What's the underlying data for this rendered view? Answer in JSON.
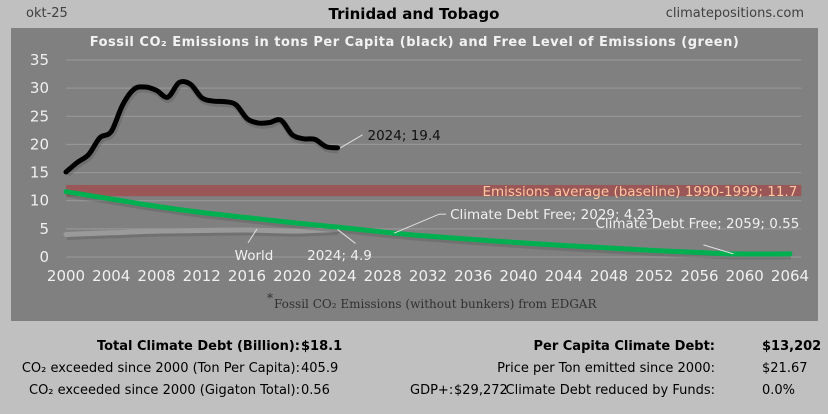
{
  "header": {
    "date": "okt-25",
    "title": "Trinidad and Tobago",
    "site": "climatepositions.com"
  },
  "chart_data": {
    "type": "line",
    "title": "Fossil CO₂ Emissions in tons Per Capita (black) and Free Level of Emissions (green)",
    "xlabel": "",
    "ylabel": "",
    "xlim": [
      2000,
      2065
    ],
    "ylim": [
      0,
      35
    ],
    "x_ticks": [
      "2000",
      "2004",
      "2008",
      "2012",
      "2016",
      "2020",
      "2024",
      "2028",
      "2032",
      "2036",
      "2040",
      "2044",
      "2048",
      "2052",
      "2056",
      "2060",
      "2064"
    ],
    "y_ticks": [
      "0",
      "5",
      "10",
      "15",
      "20",
      "25",
      "30",
      "35"
    ],
    "grid": true,
    "series": [
      {
        "name": "Trinidad and Tobago fossil CO2 per capita",
        "color": "#000000",
        "x": [
          2000,
          2001,
          2002,
          2003,
          2004,
          2005,
          2006,
          2007,
          2008,
          2009,
          2010,
          2011,
          2012,
          2013,
          2014,
          2015,
          2016,
          2017,
          2018,
          2019,
          2020,
          2021,
          2022,
          2023,
          2024
        ],
        "values": [
          15.1,
          16.8,
          18.2,
          21.2,
          22.3,
          27.0,
          29.8,
          30.2,
          29.6,
          28.4,
          31.0,
          30.7,
          28.3,
          27.7,
          27.6,
          27.1,
          24.6,
          23.8,
          23.9,
          24.3,
          21.7,
          21.0,
          20.9,
          19.6,
          19.4
        ]
      },
      {
        "name": "World",
        "color": "#9a9a9a",
        "x": [
          2000,
          2004,
          2008,
          2012,
          2016,
          2020,
          2024
        ],
        "values": [
          4.0,
          4.3,
          4.6,
          4.7,
          4.8,
          4.6,
          4.9
        ]
      },
      {
        "name": "Free level of emissions",
        "color": "#00b050",
        "x": [
          2000,
          2004,
          2008,
          2012,
          2016,
          2020,
          2024,
          2029,
          2032,
          2036,
          2040,
          2044,
          2048,
          2052,
          2056,
          2059,
          2064
        ],
        "values": [
          11.6,
          10.3,
          9.0,
          7.9,
          7.0,
          6.1,
          5.3,
          4.23,
          3.7,
          3.1,
          2.55,
          2.05,
          1.6,
          1.15,
          0.8,
          0.55,
          0.55
        ]
      }
    ],
    "baseline_band": {
      "label": "Emissions average (baseline) 1990-1999; 11.7",
      "value": 11.7,
      "range": [
        10.8,
        12.8
      ],
      "color": "#a05050"
    },
    "annotations": [
      {
        "text": "2024; 19.4",
        "x": 2024,
        "y": 19.4
      },
      {
        "text": "2024; 4.9",
        "x": 2024,
        "y": 4.9
      },
      {
        "text": "World",
        "x": 2016,
        "y": 4.8
      },
      {
        "text": "Climate Debt Free; 2029; 4.23",
        "x": 2029,
        "y": 4.23
      },
      {
        "text": "Climate Debt Free; 2059; 0.55",
        "x": 2059,
        "y": 0.55
      }
    ],
    "footnote_mark": "*",
    "footnote": "Fossil CO₂ Emissions (without bunkers) from EDGAR"
  },
  "stats": {
    "total_debt_label": "Total Climate Debt (Billion):",
    "total_debt_value": "$18.1",
    "co2_ton_label": "CO₂ exceeded since 2000 (Ton Per Capita):",
    "co2_ton_value": "405.9",
    "co2_gt_label": "CO₂ exceeded since 2000 (Gigaton Total):",
    "co2_gt_value": "0.56",
    "gdp_label": "GDP+:",
    "gdp_value": "$29,272",
    "per_capita_label": "Per Capita Climate Debt:",
    "per_capita_value": "$13,202",
    "price_label": "Price per Ton emitted since 2000:",
    "price_value": "$21.67",
    "funds_label": "Climate Debt reduced by Funds:",
    "funds_value": "0.0%"
  }
}
